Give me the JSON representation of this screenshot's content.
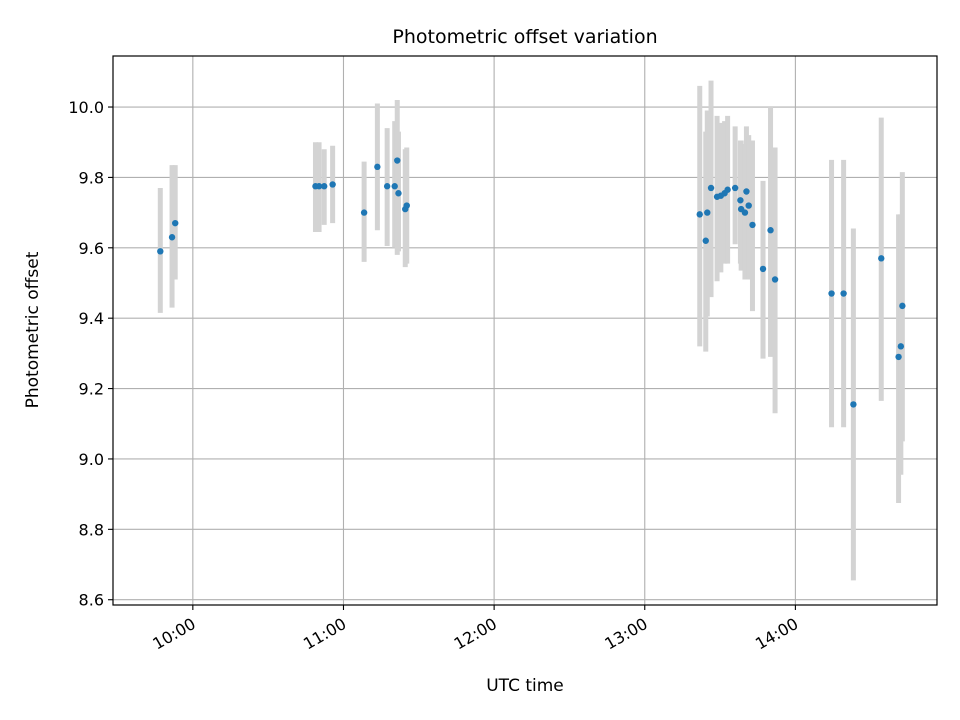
{
  "chart_data": {
    "type": "scatter",
    "title": "Photometric offset variation",
    "xlabel": "UTC time",
    "ylabel": "Photometric offset",
    "x_unit": "UTC time of day (hours)",
    "xlim": [
      9.47,
      14.94
    ],
    "ylim": [
      8.585,
      10.145
    ],
    "x_ticks": [
      {
        "value": 10,
        "label": "10:00"
      },
      {
        "value": 11,
        "label": "11:00"
      },
      {
        "value": 12,
        "label": "12:00"
      },
      {
        "value": 13,
        "label": "13:00"
      },
      {
        "value": 14,
        "label": "14:00"
      }
    ],
    "y_ticks": [
      {
        "value": 8.6,
        "label": "8.6"
      },
      {
        "value": 8.8,
        "label": "8.8"
      },
      {
        "value": 9.0,
        "label": "9.0"
      },
      {
        "value": 9.2,
        "label": "9.2"
      },
      {
        "value": 9.4,
        "label": "9.4"
      },
      {
        "value": 9.6,
        "label": "9.6"
      },
      {
        "value": 9.8,
        "label": "9.8"
      },
      {
        "value": 10.0,
        "label": "10.0"
      }
    ],
    "grid": true,
    "colors": {
      "point": "#1f77b4",
      "errorbar": "#d3d3d3",
      "grid": "#b0b0b0"
    },
    "points": [
      {
        "x": 9.784,
        "y": 9.59,
        "err_low": 9.415,
        "err_high": 9.77
      },
      {
        "x": 9.862,
        "y": 9.63,
        "err_low": 9.43,
        "err_high": 9.835
      },
      {
        "x": 9.883,
        "y": 9.67,
        "err_low": 9.51,
        "err_high": 9.835
      },
      {
        "x": 10.814,
        "y": 9.775,
        "err_low": 9.645,
        "err_high": 9.9
      },
      {
        "x": 10.838,
        "y": 9.775,
        "err_low": 9.645,
        "err_high": 9.9
      },
      {
        "x": 10.872,
        "y": 9.775,
        "err_low": 9.665,
        "err_high": 9.88
      },
      {
        "x": 10.928,
        "y": 9.78,
        "err_low": 9.67,
        "err_high": 9.89
      },
      {
        "x": 11.137,
        "y": 9.7,
        "err_low": 9.56,
        "err_high": 9.845
      },
      {
        "x": 11.225,
        "y": 9.83,
        "err_low": 9.65,
        "err_high": 10.01
      },
      {
        "x": 11.29,
        "y": 9.775,
        "err_low": 9.605,
        "err_high": 9.94
      },
      {
        "x": 11.34,
        "y": 9.775,
        "err_low": 9.6,
        "err_high": 9.96
      },
      {
        "x": 11.357,
        "y": 9.848,
        "err_low": 9.58,
        "err_high": 10.02
      },
      {
        "x": 11.365,
        "y": 9.755,
        "err_low": 9.59,
        "err_high": 9.93
      },
      {
        "x": 11.41,
        "y": 9.71,
        "err_low": 9.545,
        "err_high": 9.88
      },
      {
        "x": 11.42,
        "y": 9.72,
        "err_low": 9.555,
        "err_high": 9.885
      },
      {
        "x": 13.365,
        "y": 9.695,
        "err_low": 9.32,
        "err_high": 10.06
      },
      {
        "x": 13.405,
        "y": 9.62,
        "err_low": 9.305,
        "err_high": 9.93
      },
      {
        "x": 13.415,
        "y": 9.7,
        "err_low": 9.405,
        "err_high": 9.99
      },
      {
        "x": 13.44,
        "y": 9.77,
        "err_low": 9.46,
        "err_high": 10.075
      },
      {
        "x": 13.48,
        "y": 9.745,
        "err_low": 9.505,
        "err_high": 9.975
      },
      {
        "x": 13.505,
        "y": 9.748,
        "err_low": 9.53,
        "err_high": 9.955
      },
      {
        "x": 13.53,
        "y": 9.755,
        "err_low": 9.555,
        "err_high": 9.96
      },
      {
        "x": 13.55,
        "y": 9.765,
        "err_low": 9.555,
        "err_high": 9.975
      },
      {
        "x": 13.6,
        "y": 9.77,
        "err_low": 9.61,
        "err_high": 9.945
      },
      {
        "x": 13.635,
        "y": 9.735,
        "err_low": 9.555,
        "err_high": 9.905
      },
      {
        "x": 13.64,
        "y": 9.71,
        "err_low": 9.535,
        "err_high": 9.905
      },
      {
        "x": 13.665,
        "y": 9.7,
        "err_low": 9.51,
        "err_high": 9.895
      },
      {
        "x": 13.675,
        "y": 9.76,
        "err_low": 9.51,
        "err_high": 9.945
      },
      {
        "x": 13.69,
        "y": 9.72,
        "err_low": 9.51,
        "err_high": 9.92
      },
      {
        "x": 13.715,
        "y": 9.665,
        "err_low": 9.42,
        "err_high": 9.905
      },
      {
        "x": 13.785,
        "y": 9.54,
        "err_low": 9.285,
        "err_high": 9.79
      },
      {
        "x": 13.835,
        "y": 9.65,
        "err_low": 9.29,
        "err_high": 10.0
      },
      {
        "x": 13.865,
        "y": 9.51,
        "err_low": 9.13,
        "err_high": 9.885
      },
      {
        "x": 14.24,
        "y": 9.47,
        "err_low": 9.09,
        "err_high": 9.85
      },
      {
        "x": 14.32,
        "y": 9.47,
        "err_low": 9.09,
        "err_high": 9.85
      },
      {
        "x": 14.385,
        "y": 9.155,
        "err_low": 8.655,
        "err_high": 9.655
      },
      {
        "x": 14.57,
        "y": 9.57,
        "err_low": 9.165,
        "err_high": 9.97
      },
      {
        "x": 14.685,
        "y": 9.29,
        "err_low": 8.875,
        "err_high": 9.695
      },
      {
        "x": 14.7,
        "y": 9.32,
        "err_low": 8.955,
        "err_high": 9.695
      },
      {
        "x": 14.71,
        "y": 9.435,
        "err_low": 9.05,
        "err_high": 9.815
      }
    ]
  }
}
